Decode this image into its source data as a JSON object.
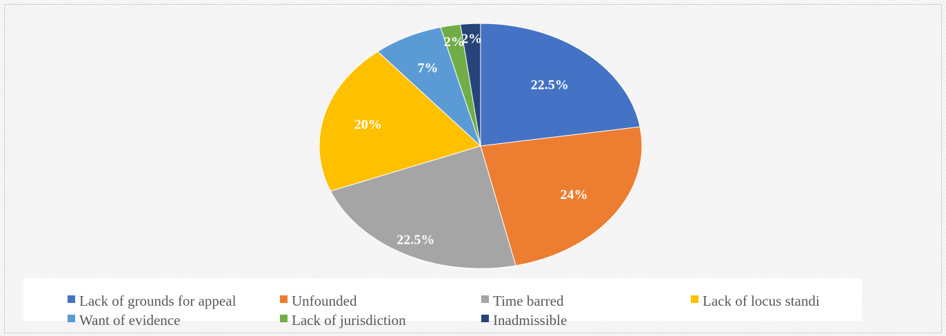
{
  "chart_data": {
    "type": "pie",
    "categories": [
      "Lack of grounds for appeal",
      "Unfounded",
      "Time barred",
      "Lack of locus standi",
      "Want of evidence",
      "Lack of jurisdiction",
      "Inadmissible"
    ],
    "values": [
      22.5,
      24,
      22.5,
      20,
      7,
      2,
      2
    ],
    "data_labels": [
      "22.5%",
      "24%",
      "22.5%",
      "20%",
      "7%",
      "2%",
      "2%"
    ],
    "colors": [
      "#4472c4",
      "#ed7d31",
      "#a5a5a5",
      "#ffc000",
      "#5b9bd5",
      "#70ad47",
      "#264478"
    ],
    "legend_position": "bottom",
    "title": ""
  }
}
